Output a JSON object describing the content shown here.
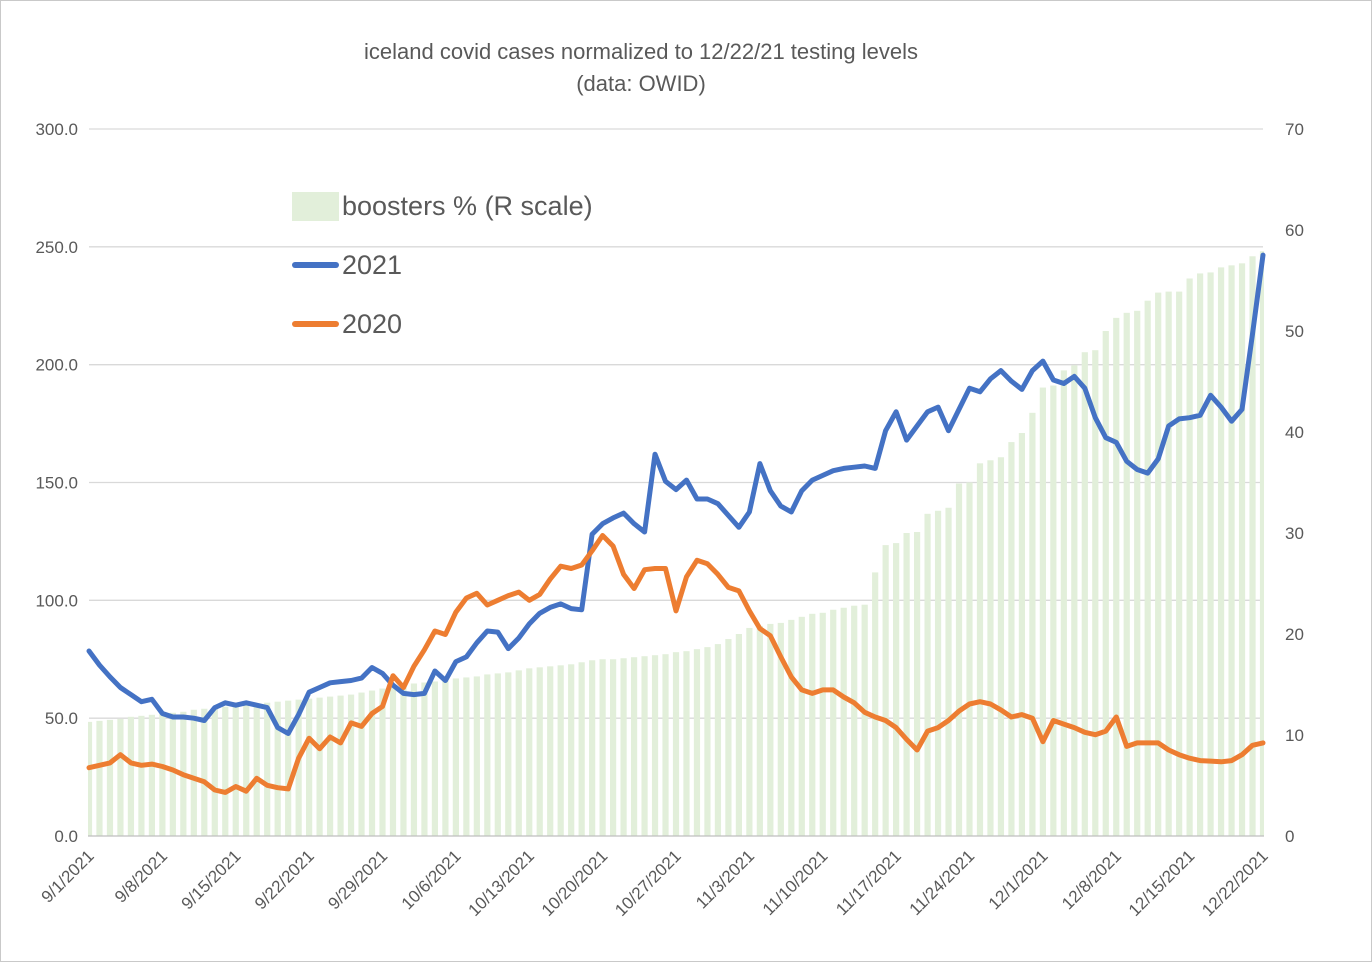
{
  "title": {
    "line1": "iceland covid cases normalized to 12/22/21 testing levels",
    "line2": "(data: OWID)"
  },
  "colors": {
    "bars": "#E2EFDA",
    "line_2021": "#4472C4",
    "line_2020": "#ED7D31",
    "gridline": "#D9D9D9",
    "axis_line": "#BFBFBF",
    "text": "#595959"
  },
  "legend": {
    "items": [
      {
        "label": "boosters % (R scale)",
        "type": "bar",
        "color": "#E2EFDA"
      },
      {
        "label": "2021",
        "type": "line",
        "color": "#4472C4"
      },
      {
        "label": "2020",
        "type": "line",
        "color": "#ED7D31"
      }
    ]
  },
  "axes": {
    "left_ticks": [
      "0.0",
      "50.0",
      "100.0",
      "150.0",
      "200.0",
      "250.0",
      "300.0"
    ],
    "right_ticks": [
      "0",
      "10",
      "20",
      "30",
      "40",
      "50",
      "60",
      "70"
    ],
    "x_tick_labels": [
      "9/1/2021",
      "9/8/2021",
      "9/15/2021",
      "9/22/2021",
      "9/29/2021",
      "10/6/2021",
      "10/13/2021",
      "10/20/2021",
      "10/27/2021",
      "11/3/2021",
      "11/10/2021",
      "11/17/2021",
      "11/24/2021",
      "12/1/2021",
      "12/8/2021",
      "12/15/2021",
      "12/22/2021"
    ],
    "x_tick_indices": [
      0,
      7,
      14,
      21,
      28,
      35,
      42,
      49,
      56,
      63,
      70,
      77,
      84,
      91,
      98,
      105,
      112
    ]
  },
  "chart_data": {
    "type": "combo",
    "title": "iceland covid cases normalized to 12/22/21 testing levels (data: OWID)",
    "n_points": 113,
    "x_start_label": "9/1/2021",
    "x_end_label": "12/22/2021",
    "left_ylim": [
      0,
      300
    ],
    "right_ylim": [
      0,
      70
    ],
    "left_grid_step": 50,
    "legend_position": "upper-left-inside",
    "series": [
      {
        "name": "boosters % (R scale)",
        "type": "bar",
        "axis": "right",
        "color": "#E2EFDA",
        "values": [
          11.3,
          11.4,
          11.5,
          11.6,
          11.8,
          11.9,
          12,
          12.1,
          12.2,
          12.3,
          12.5,
          12.6,
          12.7,
          12.8,
          12.9,
          13,
          13.1,
          13.2,
          13.3,
          13.4,
          13.5,
          13.6,
          13.7,
          13.8,
          13.9,
          14,
          14.2,
          14.4,
          14.6,
          14.8,
          15,
          15.1,
          15.2,
          15.3,
          15.4,
          15.6,
          15.7,
          15.8,
          16,
          16.1,
          16.2,
          16.4,
          16.6,
          16.7,
          16.8,
          16.9,
          17,
          17.2,
          17.4,
          17.5,
          17.5,
          17.6,
          17.7,
          17.8,
          17.9,
          18,
          18.2,
          18.3,
          18.5,
          18.7,
          19,
          19.5,
          20,
          20.6,
          20.8,
          21,
          21.1,
          21.4,
          21.7,
          22,
          22.1,
          22.4,
          22.6,
          22.8,
          22.9,
          26.1,
          28.8,
          29,
          30,
          30.1,
          31.9,
          32.2,
          32.5,
          34.9,
          35,
          36.9,
          37.2,
          37.5,
          39,
          39.9,
          41.9,
          44.4,
          44.6,
          46.1,
          46.6,
          47.9,
          48.1,
          50,
          51.3,
          51.8,
          52,
          53,
          53.8,
          53.9,
          53.9,
          55.2,
          55.7,
          55.8,
          56.3,
          56.5,
          56.7,
          57.4,
          57.9
        ]
      },
      {
        "name": "2021",
        "type": "line",
        "axis": "left",
        "color": "#4472C4",
        "values": [
          78.5,
          72.5,
          67.5,
          63,
          60,
          57,
          58,
          52,
          50.5,
          50.5,
          50,
          49,
          54.5,
          56.5,
          55.5,
          56.5,
          55.5,
          54.5,
          46,
          43.5,
          51.5,
          61,
          63,
          65,
          65.5,
          66,
          67,
          71.5,
          69,
          64,
          60.5,
          60,
          60.5,
          70,
          66,
          74,
          76,
          82,
          87,
          86.5,
          79.5,
          84,
          90,
          94.5,
          97,
          98.5,
          96.5,
          96,
          128,
          132.5,
          135,
          137,
          132.5,
          129,
          162,
          150.5,
          147,
          151,
          143,
          143,
          141,
          136,
          131,
          137.5,
          158,
          146.5,
          140,
          137.5,
          146.5,
          151,
          153,
          155,
          156,
          156.5,
          157,
          156,
          172,
          180,
          168,
          174,
          180,
          182,
          172,
          181,
          190,
          188.5,
          194,
          197.5,
          193,
          189.5,
          197.5,
          201.5,
          193.5,
          192,
          195,
          190,
          177.5,
          169,
          167,
          159,
          155.5,
          154,
          160,
          174,
          177,
          177.5,
          178.5,
          187,
          182,
          176,
          181,
          213,
          246.5
        ]
      },
      {
        "name": "2020",
        "type": "line",
        "axis": "left",
        "color": "#ED7D31",
        "values": [
          29,
          30,
          31,
          34.5,
          31,
          30,
          30.5,
          29.5,
          28,
          26,
          24.5,
          23,
          19.5,
          18.5,
          21,
          19,
          24.5,
          21.5,
          20.5,
          20,
          33,
          41.5,
          37,
          42,
          39.5,
          48,
          46.5,
          52,
          55,
          68,
          63,
          72,
          79,
          87,
          85.5,
          95,
          101,
          103,
          98,
          100,
          102,
          103.5,
          100,
          102.5,
          109,
          114.5,
          113.5,
          115,
          121,
          127.5,
          123,
          111,
          105,
          113,
          113.5,
          113.5,
          95.5,
          110,
          117,
          115.5,
          111,
          105.5,
          104,
          95.5,
          88,
          85,
          76,
          67.5,
          62,
          60.5,
          62,
          62,
          59,
          56.5,
          52.5,
          50.5,
          49,
          46,
          41,
          36.5,
          44.5,
          46,
          49,
          53,
          56,
          57,
          56,
          53.5,
          50.5,
          51.5,
          50,
          40,
          49,
          47.5,
          46,
          44,
          43,
          44.5,
          50.5,
          38,
          39.5,
          39.5,
          39.5,
          36.5,
          34.5,
          33,
          32,
          31.8,
          31.5,
          32,
          34.5,
          38.5,
          39.5
        ]
      }
    ]
  }
}
